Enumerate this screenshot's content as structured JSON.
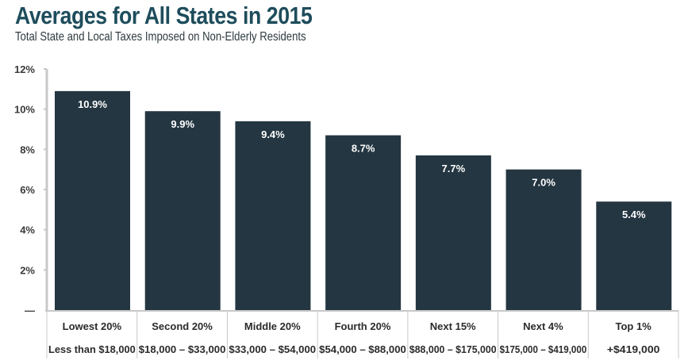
{
  "chart_data": {
    "type": "bar",
    "title": "Averages for All States in 2015",
    "subtitle": "Total State and Local Taxes Imposed on Non-Elderly Residents",
    "xlabel": "",
    "ylabel": "",
    "ylim": [
      0,
      12
    ],
    "yticks": [
      0,
      2,
      4,
      6,
      8,
      10,
      12
    ],
    "ytick_labels": [
      "—",
      "2%",
      "4%",
      "6%",
      "8%",
      "10%",
      "12%"
    ],
    "grid": false,
    "categories": [
      "Lowest 20%",
      "Second 20%",
      "Middle 20%",
      "Fourth 20%",
      "Next 15%",
      "Next 4%",
      "Top 1%"
    ],
    "income_ranges": [
      "Less than $18,000",
      "$18,000 – $33,000",
      "$33,000 – $54,000",
      "$54,000 – $88,000",
      "$88,000 – $175,000",
      "$175,000 – $419,000",
      "+$419,000"
    ],
    "values": [
      10.9,
      9.9,
      9.4,
      8.7,
      7.7,
      7.0,
      5.4
    ],
    "value_labels": [
      "10.9%",
      "9.9%",
      "9.4%",
      "8.7%",
      "7.7%",
      "7.0%",
      "5.4%"
    ],
    "colors": {
      "bar": "#243641",
      "title": "#1e4d5c",
      "axis": "#c8c8c8"
    }
  }
}
